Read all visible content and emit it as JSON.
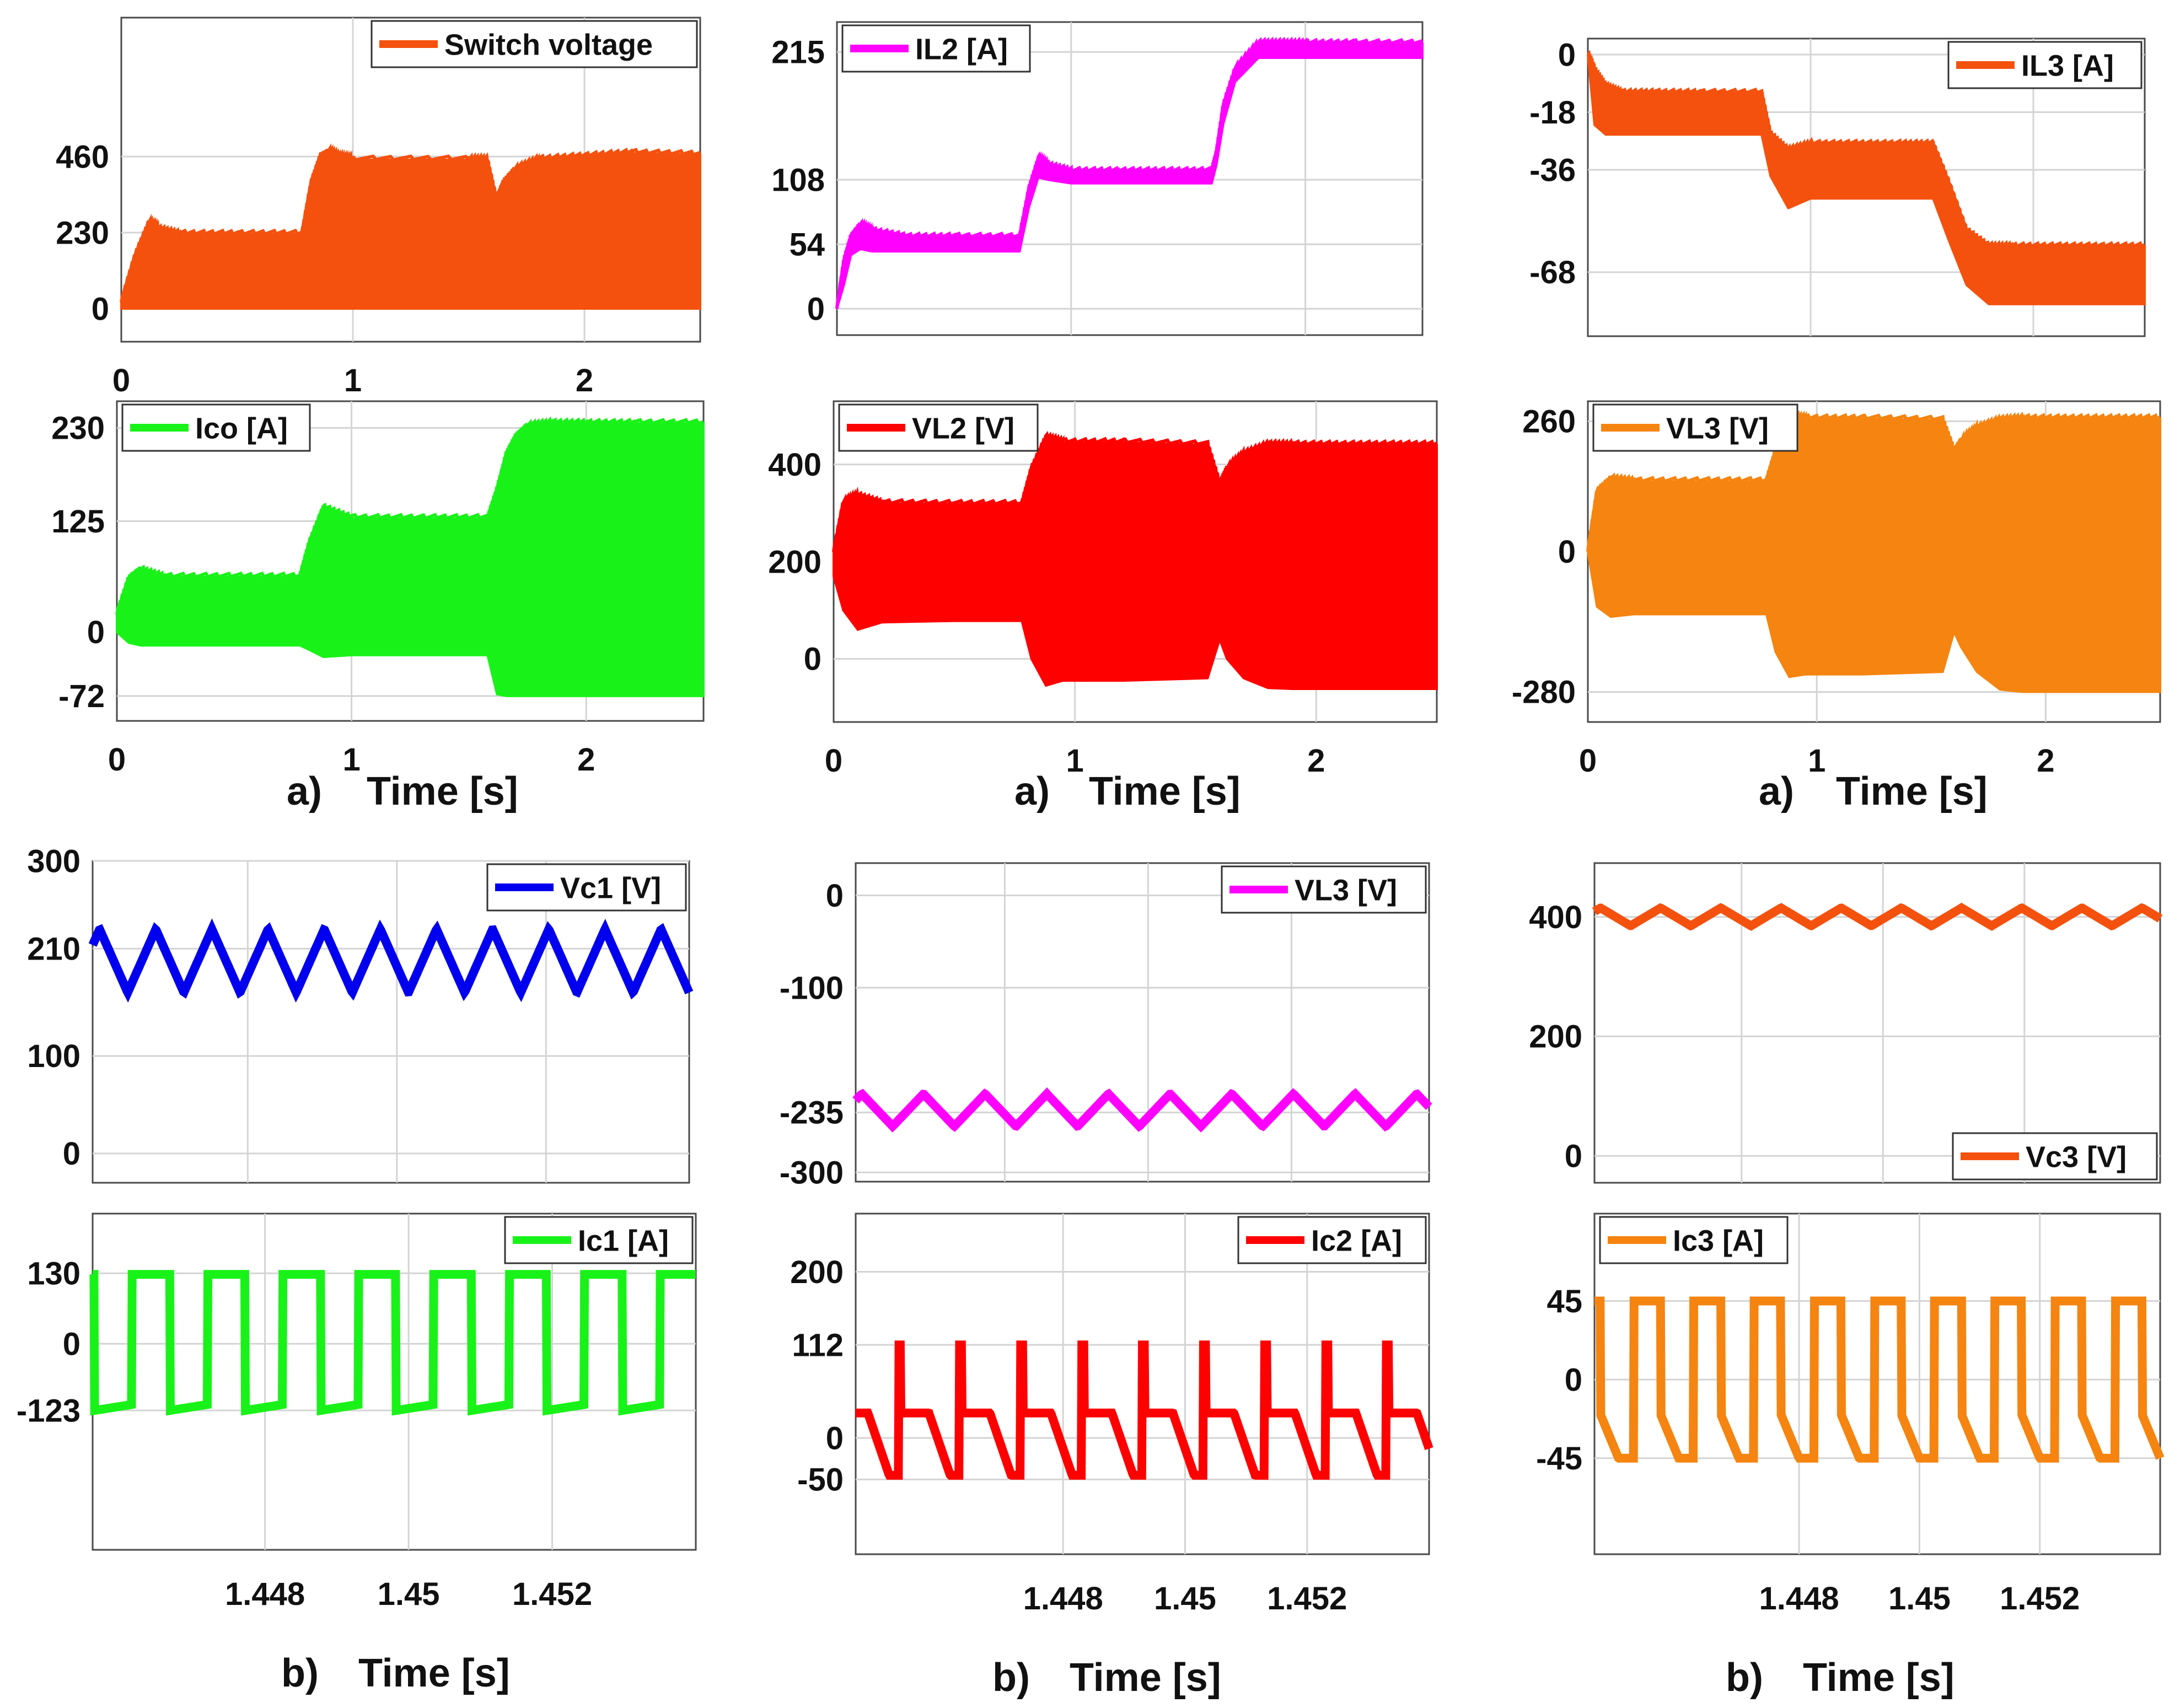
{
  "figure": {
    "row_a": {
      "panel_label": "a)",
      "xlabel": "Time [s]"
    },
    "row_b": {
      "panel_label": "b)",
      "xlabel": "Time [s]"
    }
  },
  "chart_data": [
    {
      "type": "line",
      "envelope": true,
      "series": [
        {
          "name": "Switch voltage",
          "color": "#f4510f",
          "x": [
            0,
            0.06,
            0.12,
            0.16,
            0.25,
            0.5,
            0.78,
            0.82,
            0.86,
            0.9,
            0.95,
            1.0,
            1.5,
            1.58,
            1.62,
            1.65,
            1.7,
            1.8,
            2.0,
            2.2,
            2.5
          ],
          "upper": [
            20,
            160,
            260,
            240,
            225,
            225,
            225,
            380,
            460,
            475,
            455,
            450,
            450,
            450,
            330,
            380,
            420,
            450,
            460,
            470,
            465
          ],
          "lower": [
            0,
            0,
            0,
            0,
            0,
            0,
            0,
            0,
            0,
            0,
            0,
            0,
            0,
            0,
            0,
            0,
            0,
            0,
            0,
            0,
            0
          ]
        }
      ],
      "yticks": [
        0,
        230,
        460
      ],
      "ylim": [
        -100,
        880
      ],
      "xlim": [
        0,
        2.5
      ],
      "xticks": [
        0,
        1,
        2
      ],
      "legend": "top-right",
      "grid": true
    },
    {
      "type": "line",
      "series": [
        {
          "name": "IL2 [A]",
          "color": "#ff00ff",
          "x": [
            0,
            0.03,
            0.06,
            0.1,
            0.15,
            0.3,
            0.5,
            0.78,
            0.82,
            0.86,
            0.9,
            1.0,
            1.2,
            1.4,
            1.6,
            1.62,
            1.65,
            1.7,
            1.8,
            1.9,
            2.0,
            2.2,
            2.5
          ],
          "upper": [
            0,
            40,
            60,
            70,
            65,
            60,
            60,
            60,
            100,
            125,
            120,
            115,
            115,
            115,
            115,
            130,
            170,
            200,
            222,
            222,
            222,
            222,
            222
          ],
          "lower": [
            0,
            20,
            45,
            50,
            48,
            48,
            48,
            48,
            85,
            110,
            108,
            105,
            105,
            105,
            105,
            120,
            155,
            190,
            210,
            210,
            210,
            210,
            210
          ]
        }
      ],
      "yticks": [
        0,
        54,
        108,
        215
      ],
      "ylim": [
        -22,
        240
      ],
      "xlim": [
        0,
        2.5
      ],
      "legend": "top-left",
      "grid": true
    },
    {
      "type": "line",
      "series": [
        {
          "name": "IL3 [A]",
          "color": "#f4510f",
          "x": [
            0,
            0.03,
            0.08,
            0.15,
            0.3,
            0.5,
            0.78,
            0.82,
            0.9,
            1.0,
            1.2,
            1.4,
            1.55,
            1.62,
            1.7,
            1.8,
            1.9,
            2.1,
            2.3,
            2.5
          ],
          "upper": [
            0,
            -5,
            -10,
            -12,
            -12,
            -12,
            -12,
            -25,
            -30,
            -28,
            -28,
            -28,
            -28,
            -40,
            -55,
            -60,
            -60,
            -60,
            -60,
            -60
          ],
          "lower": [
            0,
            -22,
            -25,
            -25,
            -25,
            -25,
            -25,
            -38,
            -48,
            -45,
            -45,
            -45,
            -45,
            -58,
            -72,
            -78,
            -78,
            -78,
            -78,
            -78
          ]
        }
      ],
      "yticks": [
        -68,
        -36,
        -18,
        0
      ],
      "ylim": [
        -88,
        5
      ],
      "xlim": [
        0,
        2.5
      ],
      "legend": "top-right",
      "grid": true
    },
    {
      "type": "line",
      "series": [
        {
          "name": "Ico [A]",
          "color": "#19f219",
          "x": [
            0,
            0.05,
            0.1,
            0.2,
            0.5,
            0.78,
            0.82,
            0.88,
            1.0,
            1.3,
            1.58,
            1.62,
            1.66,
            1.7,
            1.75,
            1.85,
            2.0,
            2.2,
            2.5
          ],
          "upper": [
            20,
            60,
            70,
            62,
            62,
            62,
            100,
            140,
            128,
            128,
            128,
            160,
            200,
            220,
            232,
            235,
            235,
            235,
            235
          ],
          "lower": [
            0,
            -12,
            -15,
            -15,
            -15,
            -15,
            -20,
            -28,
            -26,
            -26,
            -26,
            -70,
            -72,
            -72,
            -72,
            -72,
            -72,
            -72,
            -72
          ]
        }
      ],
      "yticks": [
        -72,
        0,
        125,
        230
      ],
      "ylim": [
        -100,
        260
      ],
      "xlim": [
        0,
        2.5
      ],
      "xticks": [
        0,
        1,
        2
      ],
      "legend": "top-left",
      "grid": true
    },
    {
      "type": "line",
      "series": [
        {
          "name": "VL2 [V]",
          "color": "#ff0000",
          "x": [
            0,
            0.04,
            0.1,
            0.2,
            0.5,
            0.78,
            0.82,
            0.88,
            0.95,
            1.2,
            1.55,
            1.6,
            1.63,
            1.7,
            1.8,
            1.9,
            2.1,
            2.3,
            2.5
          ],
          "upper": [
            220,
            320,
            335,
            320,
            318,
            318,
            390,
            455,
            445,
            445,
            440,
            360,
            390,
            420,
            440,
            440,
            440,
            440,
            440
          ],
          "lower": [
            170,
            100,
            60,
            75,
            78,
            78,
            0,
            -55,
            -45,
            -45,
            -40,
            40,
            0,
            -40,
            -60,
            -62,
            -62,
            -62,
            -62
          ]
        }
      ],
      "yticks": [
        0,
        200,
        400
      ],
      "ylim": [
        -130,
        530
      ],
      "xlim": [
        0,
        2.5
      ],
      "xticks": [
        0,
        1,
        2
      ],
      "legend": "top-left",
      "grid": true
    },
    {
      "type": "line",
      "series": [
        {
          "name": "VL3 [V]",
          "color": "#f58410",
          "x": [
            0,
            0.04,
            0.1,
            0.2,
            0.5,
            0.78,
            0.82,
            0.88,
            0.95,
            1.2,
            1.55,
            1.6,
            1.63,
            1.7,
            1.8,
            1.9,
            2.1,
            2.3,
            2.5
          ],
          "upper": [
            0,
            120,
            145,
            140,
            140,
            140,
            200,
            270,
            265,
            265,
            262,
            200,
            220,
            245,
            262,
            265,
            265,
            265,
            265
          ],
          "lower": [
            0,
            -110,
            -130,
            -125,
            -125,
            -125,
            -200,
            -250,
            -245,
            -245,
            -240,
            -160,
            -190,
            -240,
            -275,
            -280,
            -280,
            -280,
            -280
          ]
        }
      ],
      "yticks": [
        -280,
        0,
        260
      ],
      "ylim": [
        -340,
        300
      ],
      "xlim": [
        0,
        2.5
      ],
      "xticks": [
        0,
        1,
        2
      ],
      "legend": "top-left",
      "grid": true
    },
    {
      "type": "line",
      "wave": {
        "shape": "triangle",
        "period": 0.0008,
        "phase": 0.0003,
        "min": 165,
        "max": 230
      },
      "series": [
        {
          "name": "Vc1 [V]",
          "color": "#0000ee"
        }
      ],
      "yticks": [
        0,
        100,
        210,
        300
      ],
      "ylim": [
        -30,
        300
      ],
      "xlim": [
        1.4454,
        1.4539
      ],
      "legend": "top-right",
      "grid": true
    },
    {
      "type": "line",
      "wave": {
        "shape": "triangle",
        "period": 0.001,
        "phase": 0.0003,
        "min": -250,
        "max": -215
      },
      "series": [
        {
          "name": "VL3 [V]",
          "color": "#ff00ff"
        }
      ],
      "yticks": [
        -300,
        -235,
        -100,
        0
      ],
      "ylim": [
        -310,
        35
      ],
      "xlim": [
        1.4447,
        1.454
      ],
      "legend": "top-right",
      "grid": true
    },
    {
      "type": "line",
      "wave": {
        "shape": "triangle",
        "period": 0.001,
        "phase": 0.0002,
        "min": 385,
        "max": 415
      },
      "series": [
        {
          "name": "Vc3 [V]",
          "color": "#f4510f"
        }
      ],
      "yticks": [
        0,
        200,
        400
      ],
      "ylim": [
        -45,
        490
      ],
      "xlim": [
        1.4446,
        1.454
      ],
      "legend": "bottom-right",
      "grid": true
    },
    {
      "type": "line",
      "wave": {
        "shape": "square",
        "period": 0.00105,
        "phase": 0.0003,
        "high": 128,
        "low": -123,
        "low_end": -112
      },
      "series": [
        {
          "name": "Ic1 [A]",
          "color": "#19f219"
        }
      ],
      "yticks": [
        -123,
        0,
        130
      ],
      "ylim": [
        -380,
        240
      ],
      "xlim": [
        1.4456,
        1.454
      ],
      "xticks": [
        1.448,
        1.45,
        1.452
      ],
      "legend": "top-right",
      "grid": true
    },
    {
      "type": "line",
      "wave": {
        "shape": "spike",
        "period": 0.001,
        "phase": 0.0003,
        "peak": 112,
        "plateau": 30,
        "low": -45
      },
      "series": [
        {
          "name": "Ic2 [A]",
          "color": "#ff0000"
        }
      ],
      "yticks": [
        -50,
        0,
        112,
        200
      ],
      "ylim": [
        -140,
        270
      ],
      "xlim": [
        1.4446,
        1.454
      ],
      "xticks": [
        1.448,
        1.45,
        1.452
      ],
      "legend": "top-right",
      "grid": true
    },
    {
      "type": "line",
      "wave": {
        "shape": "square-ramp",
        "period": 0.001,
        "phase": 0.00025,
        "high": 45,
        "low": -45,
        "ramp_top": -20
      },
      "series": [
        {
          "name": "Ic3 [A]",
          "color": "#f58410"
        }
      ],
      "yticks": [
        -45,
        0,
        45
      ],
      "ylim": [
        -100,
        95
      ],
      "xlim": [
        1.4446,
        1.454
      ],
      "xticks": [
        1.448,
        1.45,
        1.452
      ],
      "legend": "top-left",
      "grid": true
    }
  ]
}
